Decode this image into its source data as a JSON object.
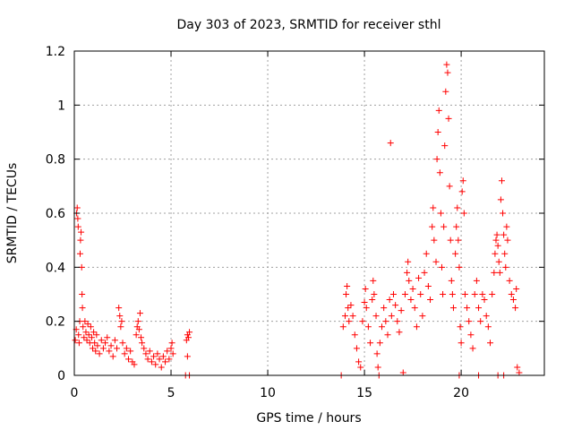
{
  "chart_data": {
    "type": "scatter",
    "title": "Day 303 of 2023, SRMTID for receiver sthl",
    "xlabel": "GPS time / hours",
    "ylabel": "SRMTID / TECUs",
    "xlim": [
      0,
      24.3
    ],
    "ylim": [
      0,
      1.2
    ],
    "xticks": [
      0,
      5,
      10,
      15,
      20
    ],
    "xtick_labels": [
      "0",
      "5",
      "10",
      "15",
      "20"
    ],
    "yticks": [
      0,
      0.2,
      0.4,
      0.6,
      0.8,
      1,
      1.2
    ],
    "ytick_labels": [
      "0",
      "0.2",
      "0.4",
      "0.6",
      "0.8",
      "1",
      "1.2"
    ],
    "grid": true,
    "marker": "+",
    "color": "#ff0000",
    "series": [
      {
        "name": "SRMTID",
        "points": [
          [
            0.05,
            0.13
          ],
          [
            0.1,
            0.17
          ],
          [
            0.12,
            0.6
          ],
          [
            0.15,
            0.62
          ],
          [
            0.18,
            0.58
          ],
          [
            0.2,
            0.55
          ],
          [
            0.22,
            0.15
          ],
          [
            0.25,
            0.12
          ],
          [
            0.28,
            0.2
          ],
          [
            0.3,
            0.45
          ],
          [
            0.32,
            0.5
          ],
          [
            0.35,
            0.53
          ],
          [
            0.38,
            0.4
          ],
          [
            0.4,
            0.3
          ],
          [
            0.42,
            0.25
          ],
          [
            0.45,
            0.18
          ],
          [
            0.5,
            0.14
          ],
          [
            0.55,
            0.2
          ],
          [
            0.6,
            0.16
          ],
          [
            0.65,
            0.13
          ],
          [
            0.7,
            0.19
          ],
          [
            0.75,
            0.15
          ],
          [
            0.8,
            0.12
          ],
          [
            0.85,
            0.18
          ],
          [
            0.9,
            0.14
          ],
          [
            0.95,
            0.1
          ],
          [
            1.0,
            0.16
          ],
          [
            1.05,
            0.12
          ],
          [
            1.1,
            0.09
          ],
          [
            1.15,
            0.15
          ],
          [
            1.2,
            0.11
          ],
          [
            1.3,
            0.08
          ],
          [
            1.4,
            0.13
          ],
          [
            1.5,
            0.1
          ],
          [
            1.6,
            0.12
          ],
          [
            1.7,
            0.14
          ],
          [
            1.8,
            0.09
          ],
          [
            1.9,
            0.11
          ],
          [
            2.0,
            0.07
          ],
          [
            2.1,
            0.13
          ],
          [
            2.2,
            0.1
          ],
          [
            2.3,
            0.25
          ],
          [
            2.35,
            0.22
          ],
          [
            2.4,
            0.18
          ],
          [
            2.45,
            0.2
          ],
          [
            2.5,
            0.12
          ],
          [
            2.6,
            0.08
          ],
          [
            2.7,
            0.1
          ],
          [
            2.8,
            0.06
          ],
          [
            2.9,
            0.09
          ],
          [
            3.0,
            0.05
          ],
          [
            3.1,
            0.04
          ],
          [
            3.2,
            0.15
          ],
          [
            3.25,
            0.18
          ],
          [
            3.3,
            0.2
          ],
          [
            3.35,
            0.17
          ],
          [
            3.4,
            0.23
          ],
          [
            3.45,
            0.14
          ],
          [
            3.5,
            0.12
          ],
          [
            3.6,
            0.1
          ],
          [
            3.7,
            0.08
          ],
          [
            3.8,
            0.06
          ],
          [
            3.9,
            0.09
          ],
          [
            4.0,
            0.05
          ],
          [
            4.1,
            0.07
          ],
          [
            4.2,
            0.04
          ],
          [
            4.3,
            0.08
          ],
          [
            4.4,
            0.06
          ],
          [
            4.5,
            0.03
          ],
          [
            4.6,
            0.07
          ],
          [
            4.7,
            0.05
          ],
          [
            4.8,
            0.09
          ],
          [
            4.9,
            0.06
          ],
          [
            5.0,
            0.1
          ],
          [
            5.05,
            0.12
          ],
          [
            5.1,
            0.08
          ],
          [
            5.8,
            0.13
          ],
          [
            5.85,
            0.15
          ],
          [
            5.9,
            0.14
          ],
          [
            5.95,
            0.16
          ],
          [
            5.85,
            0.07
          ],
          [
            5.75,
            0.0
          ],
          [
            5.95,
            0.0
          ],
          [
            13.8,
            0.0
          ],
          [
            13.9,
            0.18
          ],
          [
            14.0,
            0.22
          ],
          [
            14.05,
            0.3
          ],
          [
            14.1,
            0.33
          ],
          [
            14.15,
            0.25
          ],
          [
            14.2,
            0.2
          ],
          [
            14.3,
            0.26
          ],
          [
            14.4,
            0.22
          ],
          [
            14.5,
            0.15
          ],
          [
            14.6,
            0.1
          ],
          [
            14.7,
            0.05
          ],
          [
            14.8,
            0.03
          ],
          [
            14.9,
            0.2
          ],
          [
            15.0,
            0.27
          ],
          [
            15.05,
            0.32
          ],
          [
            15.1,
            0.25
          ],
          [
            15.2,
            0.18
          ],
          [
            15.3,
            0.12
          ],
          [
            15.4,
            0.28
          ],
          [
            15.45,
            0.35
          ],
          [
            15.5,
            0.3
          ],
          [
            15.6,
            0.22
          ],
          [
            15.65,
            0.08
          ],
          [
            15.7,
            0.03
          ],
          [
            15.75,
            0.0
          ],
          [
            15.8,
            0.12
          ],
          [
            15.9,
            0.18
          ],
          [
            16.0,
            0.25
          ],
          [
            16.1,
            0.2
          ],
          [
            16.2,
            0.15
          ],
          [
            16.3,
            0.28
          ],
          [
            16.35,
            0.86
          ],
          [
            16.4,
            0.22
          ],
          [
            16.5,
            0.3
          ],
          [
            16.6,
            0.26
          ],
          [
            16.7,
            0.2
          ],
          [
            16.8,
            0.16
          ],
          [
            16.9,
            0.24
          ],
          [
            17.0,
            0.01
          ],
          [
            17.1,
            0.3
          ],
          [
            17.2,
            0.38
          ],
          [
            17.25,
            0.42
          ],
          [
            17.3,
            0.35
          ],
          [
            17.4,
            0.28
          ],
          [
            17.5,
            0.32
          ],
          [
            17.6,
            0.25
          ],
          [
            17.7,
            0.18
          ],
          [
            17.8,
            0.36
          ],
          [
            17.9,
            0.3
          ],
          [
            18.0,
            0.22
          ],
          [
            18.1,
            0.38
          ],
          [
            18.2,
            0.45
          ],
          [
            18.3,
            0.33
          ],
          [
            18.4,
            0.28
          ],
          [
            18.5,
            0.55
          ],
          [
            18.55,
            0.62
          ],
          [
            18.6,
            0.5
          ],
          [
            18.7,
            0.42
          ],
          [
            18.75,
            0.8
          ],
          [
            18.8,
            0.9
          ],
          [
            18.85,
            0.98
          ],
          [
            18.9,
            0.75
          ],
          [
            18.95,
            0.6
          ],
          [
            19.0,
            0.4
          ],
          [
            19.05,
            0.3
          ],
          [
            19.1,
            0.55
          ],
          [
            19.15,
            0.85
          ],
          [
            19.2,
            1.05
          ],
          [
            19.25,
            1.15
          ],
          [
            19.3,
            1.12
          ],
          [
            19.35,
            0.95
          ],
          [
            19.4,
            0.7
          ],
          [
            19.45,
            0.5
          ],
          [
            19.5,
            0.35
          ],
          [
            19.55,
            0.3
          ],
          [
            19.6,
            0.25
          ],
          [
            19.7,
            0.45
          ],
          [
            19.75,
            0.55
          ],
          [
            19.8,
            0.62
          ],
          [
            19.85,
            0.5
          ],
          [
            19.9,
            0.4
          ],
          [
            19.95,
            0.18
          ],
          [
            20.0,
            0.12
          ],
          [
            20.05,
            0.68
          ],
          [
            20.1,
            0.72
          ],
          [
            20.15,
            0.6
          ],
          [
            20.2,
            0.3
          ],
          [
            20.3,
            0.25
          ],
          [
            20.4,
            0.2
          ],
          [
            20.5,
            0.15
          ],
          [
            20.6,
            0.1
          ],
          [
            20.7,
            0.3
          ],
          [
            20.8,
            0.35
          ],
          [
            20.9,
            0.25
          ],
          [
            21.0,
            0.2
          ],
          [
            21.1,
            0.3
          ],
          [
            21.2,
            0.28
          ],
          [
            21.3,
            0.22
          ],
          [
            21.4,
            0.18
          ],
          [
            21.5,
            0.12
          ],
          [
            21.6,
            0.3
          ],
          [
            21.7,
            0.38
          ],
          [
            21.75,
            0.45
          ],
          [
            21.8,
            0.5
          ],
          [
            21.85,
            0.52
          ],
          [
            21.9,
            0.48
          ],
          [
            21.95,
            0.42
          ],
          [
            22.0,
            0.38
          ],
          [
            22.05,
            0.65
          ],
          [
            22.1,
            0.72
          ],
          [
            22.15,
            0.6
          ],
          [
            22.2,
            0.52
          ],
          [
            22.25,
            0.45
          ],
          [
            22.3,
            0.4
          ],
          [
            22.35,
            0.55
          ],
          [
            22.4,
            0.5
          ],
          [
            22.5,
            0.35
          ],
          [
            22.6,
            0.3
          ],
          [
            22.7,
            0.28
          ],
          [
            22.8,
            0.25
          ],
          [
            22.85,
            0.32
          ],
          [
            22.9,
            0.03
          ],
          [
            23.0,
            0.01
          ],
          [
            21.9,
            0.0
          ],
          [
            22.2,
            0.0
          ],
          [
            20.9,
            0.0
          ],
          [
            19.9,
            0.0
          ]
        ]
      }
    ]
  }
}
